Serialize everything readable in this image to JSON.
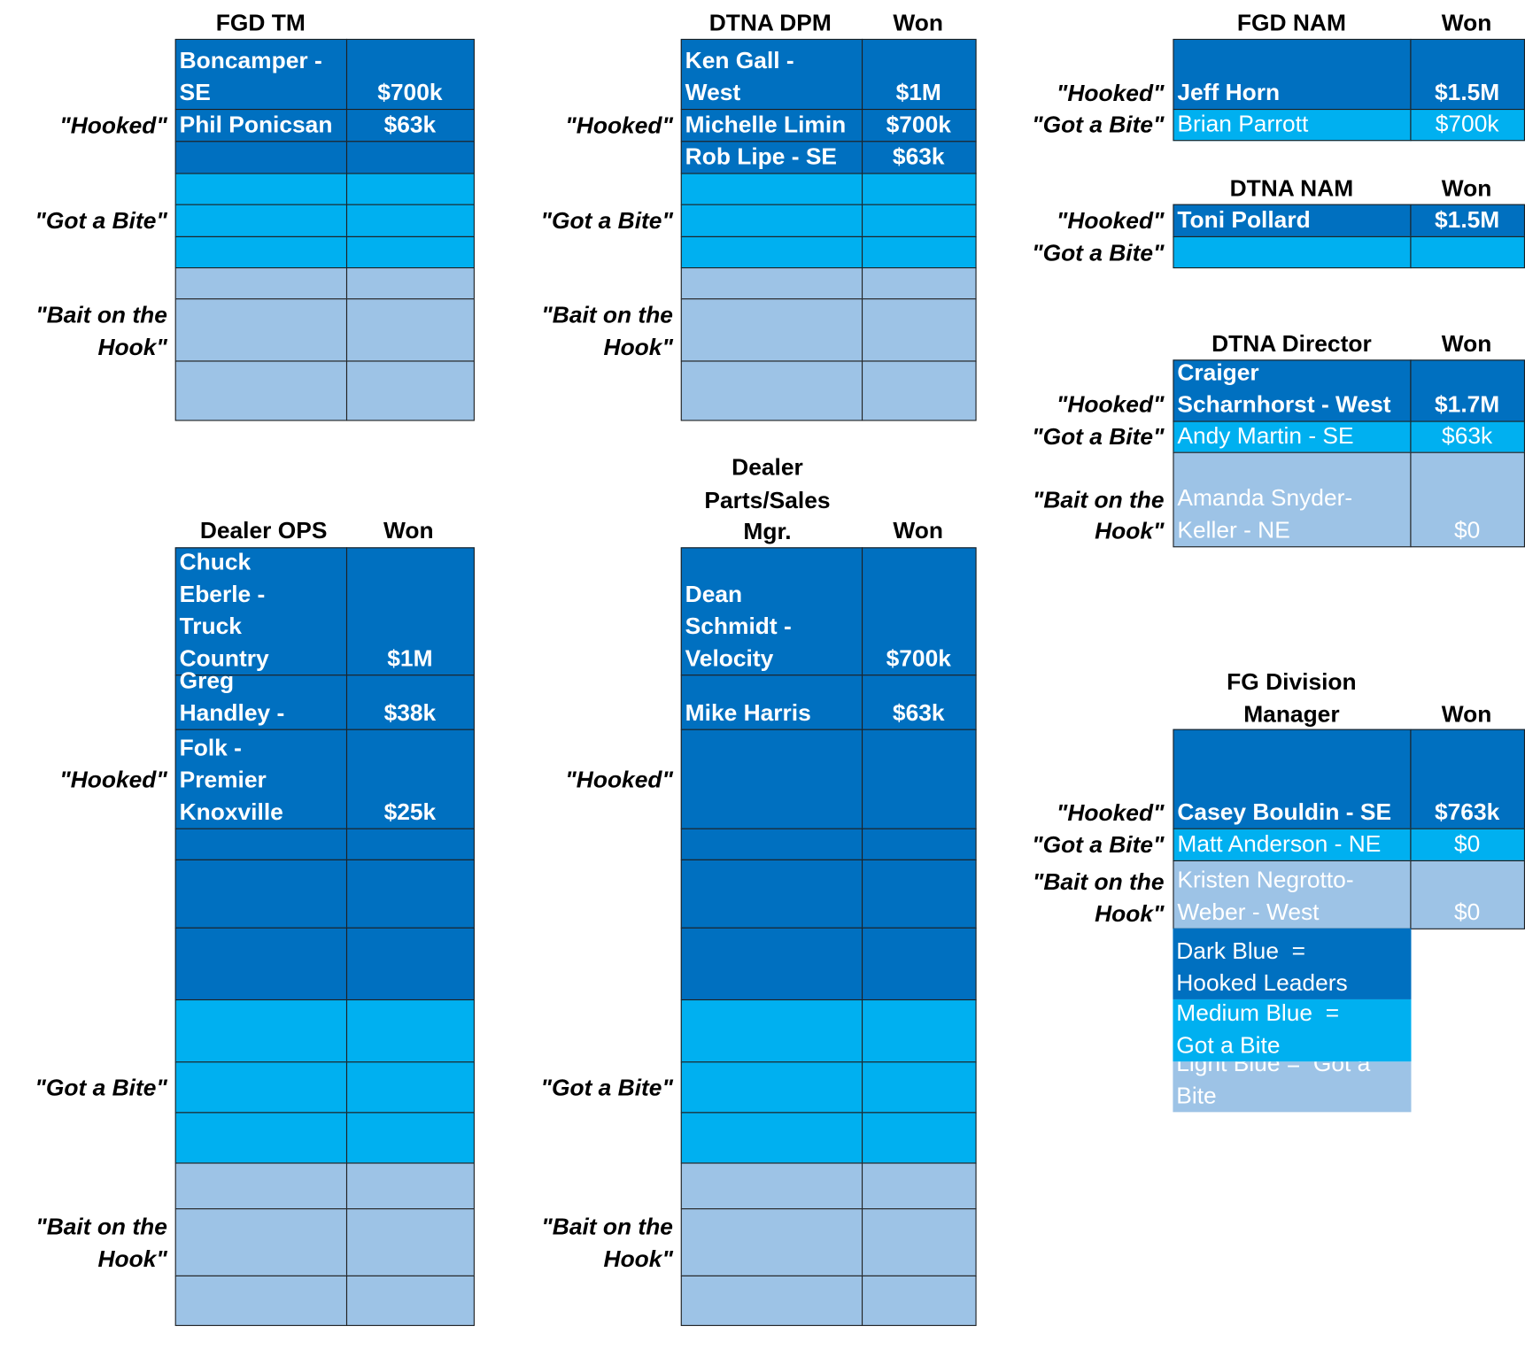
{
  "tables": [
    {
      "header": {
        "title_lines": [
          "FGD TM"
        ]
      },
      "side_labels": [
        {
          "lines": [
            "\"Hooked\""
          ]
        },
        {
          "lines": [
            "\"Got a Bite\""
          ]
        },
        {
          "lines": [
            "\"Bait on the",
            "Hook\""
          ]
        }
      ],
      "rows": [
        {
          "name_lines": [
            "Boncamper -",
            "SE"
          ],
          "value": "$700k"
        },
        {
          "name_lines": [
            "Phil Ponicsan"
          ],
          "value": "$63k"
        }
      ]
    },
    {
      "header": {
        "title_lines": [
          "DTNA DPM"
        ],
        "won": "Won"
      },
      "side_labels": [
        {
          "lines": [
            "\"Hooked\""
          ]
        },
        {
          "lines": [
            "\"Got a Bite\""
          ]
        },
        {
          "lines": [
            "\"Bait on the",
            "Hook\""
          ]
        }
      ],
      "rows": [
        {
          "name_lines": [
            "Ken Gall -",
            "West"
          ],
          "value": "$1M"
        },
        {
          "name_lines": [
            "Michelle Limin"
          ],
          "value": "$700k"
        },
        {
          "name_lines": [
            "Rob Lipe - SE"
          ],
          "value": "$63k"
        }
      ]
    },
    {
      "header": {
        "title_lines": [
          "FGD NAM"
        ],
        "won": "Won"
      },
      "side_labels": [
        {
          "lines": [
            "\"Hooked\""
          ]
        },
        {
          "lines": [
            "\"Got a Bite\""
          ]
        }
      ],
      "rows": [
        {
          "name_lines": [
            "Jeff Horn"
          ],
          "value": "$1.5M"
        },
        {
          "name_lines": [
            "Brian Parrott"
          ],
          "value": "$700k"
        }
      ]
    },
    {
      "header": {
        "title_lines": [
          "DTNA NAM"
        ],
        "won": "Won"
      },
      "side_labels": [
        {
          "lines": [
            "\"Hooked\""
          ]
        },
        {
          "lines": [
            "\"Got a Bite\""
          ]
        }
      ],
      "rows": [
        {
          "name_lines": [
            "Toni Pollard"
          ],
          "value": "$1.5M"
        }
      ]
    },
    {
      "header": {
        "title_lines": [
          "DTNA Director"
        ],
        "won": "Won"
      },
      "side_labels": [
        {
          "lines": [
            "\"Hooked\""
          ]
        },
        {
          "lines": [
            "\"Got a Bite\""
          ]
        },
        {
          "lines": [
            "\"Bait on the",
            "Hook\""
          ]
        }
      ],
      "rows": [
        {
          "name_lines": [
            "Craiger",
            "Scharnhorst - West"
          ],
          "value": "$1.7M"
        },
        {
          "name_lines": [
            "Andy Martin - SE"
          ],
          "value": "$63k"
        },
        {
          "name_lines": [
            "Amanda Snyder-",
            "Keller - NE"
          ],
          "value": "$0"
        }
      ]
    },
    {
      "header": {
        "title_lines": [
          "FG Division",
          "Manager"
        ],
        "won": "Won"
      },
      "side_labels": [
        {
          "lines": [
            "\"Hooked\""
          ]
        },
        {
          "lines": [
            "\"Got a Bite\""
          ]
        },
        {
          "lines": [
            "\"Bait on the",
            "Hook\""
          ]
        }
      ],
      "rows": [
        {
          "name_lines": [
            "Casey Bouldin - SE"
          ],
          "value": "$763k"
        },
        {
          "name_lines": [
            "Matt Anderson - NE"
          ],
          "value": "$0"
        },
        {
          "name_lines": [
            "Kristen Negrotto-",
            "Weber - West"
          ],
          "value": "$0"
        }
      ]
    },
    {
      "header": {
        "title_lines": [
          "Dealer OPS"
        ],
        "won": "Won"
      },
      "side_labels": [
        {
          "lines": [
            "\"Hooked\""
          ]
        },
        {
          "lines": [
            "\"Got a Bite\""
          ]
        },
        {
          "lines": [
            "\"Bait on the",
            "Hook\""
          ]
        }
      ],
      "rows": [
        {
          "name_lines": [
            "Chuck",
            "Eberle -",
            "Truck",
            "Country"
          ],
          "value": "$1M"
        },
        {
          "name_lines": [
            "Greg",
            "Handley -"
          ],
          "value": "$38k"
        },
        {
          "name_lines": [
            "Folk -",
            "Premier",
            "Knoxville"
          ],
          "value": "$25k"
        }
      ]
    },
    {
      "header": {
        "title_lines": [
          "Dealer",
          "Parts/Sales",
          "Mgr."
        ],
        "won": "Won"
      },
      "side_labels": [
        {
          "lines": [
            "\"Hooked\""
          ]
        },
        {
          "lines": [
            "\"Got a Bite\""
          ]
        },
        {
          "lines": [
            "\"Bait on the",
            "Hook\""
          ]
        }
      ],
      "rows": [
        {
          "name_lines": [
            "Dean",
            "Schmidt -",
            "Velocity"
          ],
          "value": "$700k"
        },
        {
          "name_lines": [
            "Mike Harris"
          ],
          "value": "$63k"
        }
      ]
    }
  ],
  "legend": [
    {
      "lines": [
        "Dark Blue  =",
        "Hooked Leaders"
      ]
    },
    {
      "lines": [
        "Medium Blue  =",
        "Got a Bite"
      ]
    },
    {
      "lines": [
        "Light Blue =  Got a",
        "Bite"
      ]
    }
  ]
}
